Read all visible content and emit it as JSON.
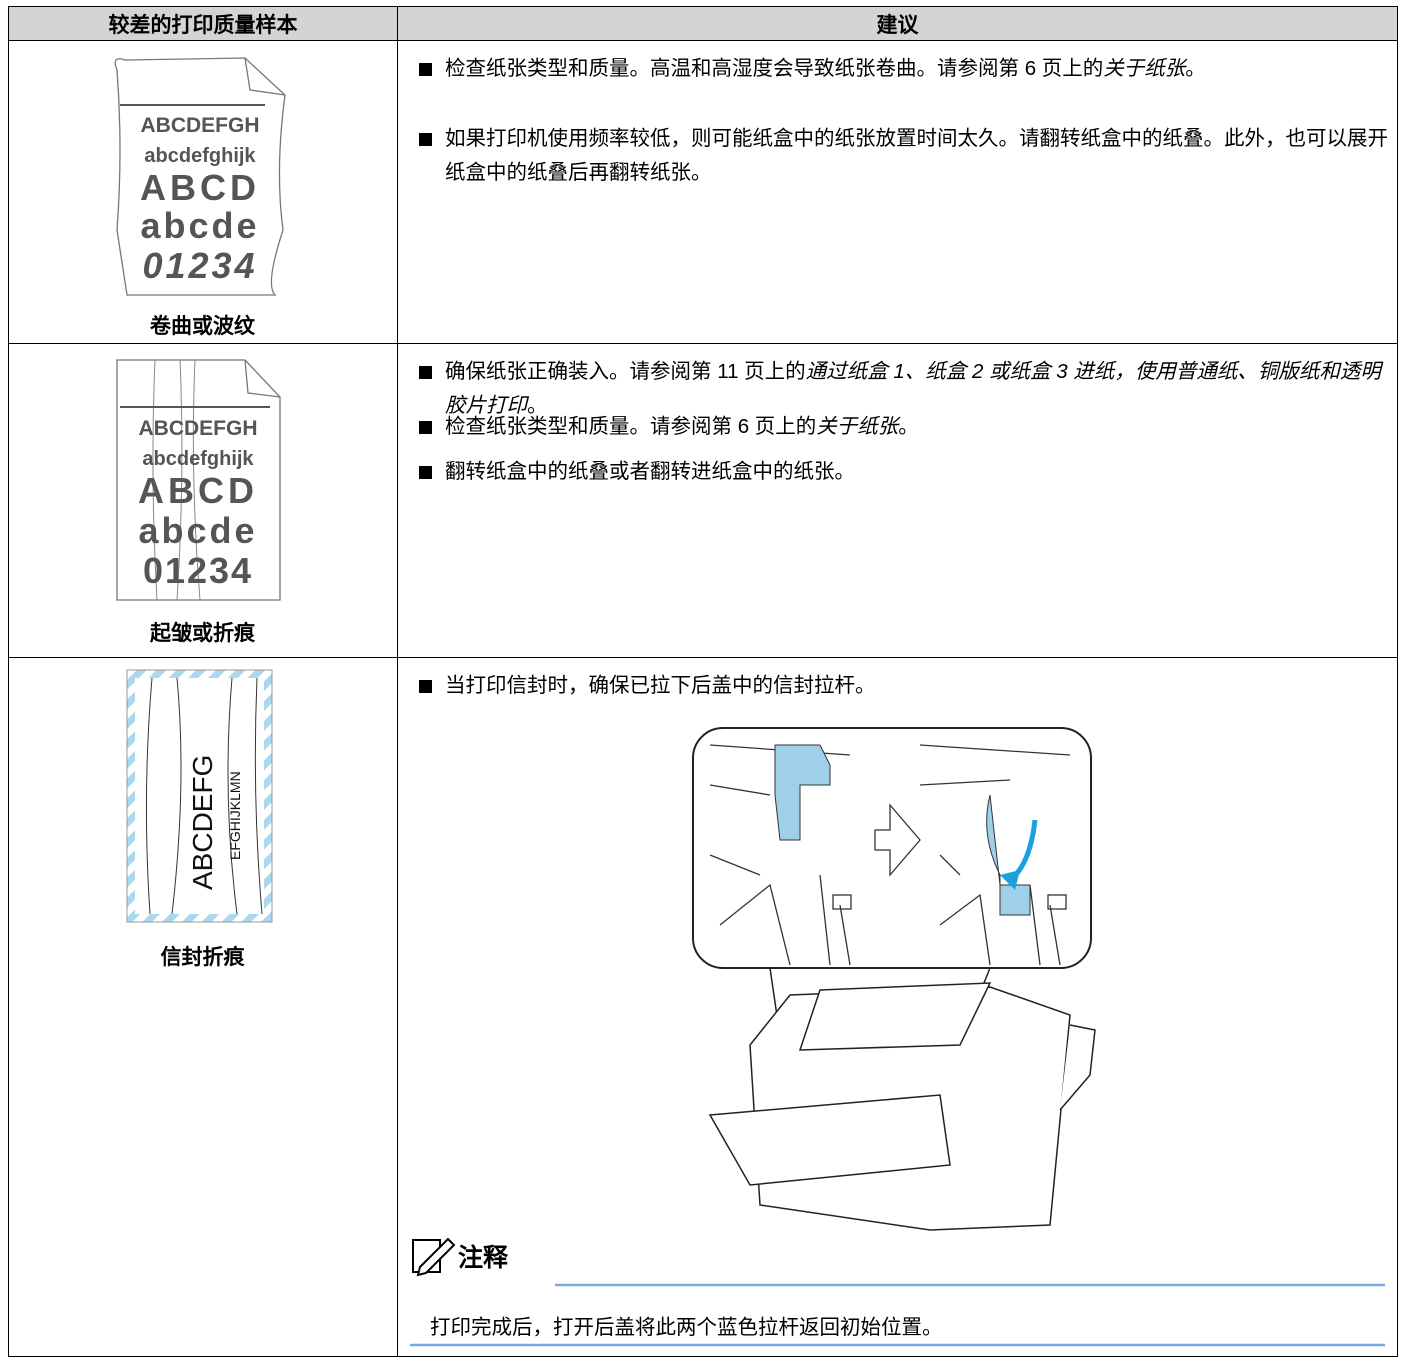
{
  "table": {
    "headers": [
      "较差的打印质量样本",
      "建议"
    ],
    "rows": [
      {
        "sample": [
          "ABCDEFGH",
          "abcdefghijk",
          "ABCD",
          "abcde",
          "01234"
        ],
        "caption": "卷曲或波纹",
        "bullets": [
          [
            {
              "plain": "检查纸张类型和质量。高温和高湿度会导致纸张卷曲。请参阅第 6 页上的"
            },
            {
              "italic": "关于纸张"
            },
            {
              "plain": "。"
            }
          ],
          [
            {
              "plain": "如果打印机使用频率较低，则可能纸盒中的纸张放置时间太久。请翻转纸盒中的纸叠。此外，也可以展开纸盒中的纸叠后再翻转纸张。"
            }
          ]
        ]
      },
      {
        "sample": [
          "ABCDEFGH",
          "abcdefghijk",
          "ABCD",
          "abcde",
          "01234"
        ],
        "caption": "起皱或折痕",
        "bullets": [
          [
            {
              "plain": "确保纸张正确装入。请参阅第 11 页上的"
            },
            {
              "italic": "通过纸盒 1、纸盒 2 或纸盒 3 进纸，使用普通纸、铜版纸和透明胶片打印"
            },
            {
              "plain": "。"
            }
          ],
          [
            {
              "plain": "检查纸张类型和质量。请参阅第 6 页上的"
            },
            {
              "italic": "关于纸张"
            },
            {
              "plain": "。"
            }
          ],
          [
            {
              "plain": "翻转纸盒中的纸叠或者翻转进纸盒中的纸张。"
            }
          ]
        ]
      },
      {
        "sample": [
          "ABCDEFG",
          "EFGHIJKLMN"
        ],
        "caption": "信封折痕",
        "bullets": [
          [
            {
              "plain": "当打印信封时，确保已拉下后盖中的信封拉杆。"
            }
          ]
        ],
        "note": {
          "title": "注释",
          "text": "打印完成后，打开后盖将此两个蓝色拉杆返回初始位置。"
        }
      }
    ]
  }
}
